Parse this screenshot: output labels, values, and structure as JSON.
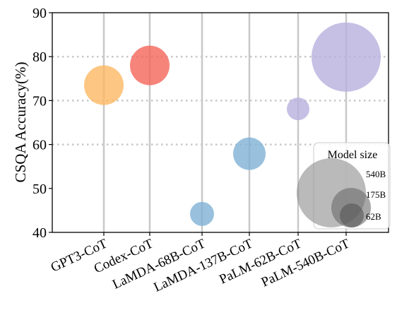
{
  "chart_data": {
    "type": "scatter",
    "ylabel": "CSQA Accuracy(%)",
    "ylim": [
      40,
      90
    ],
    "yticks": [
      40,
      50,
      60,
      70,
      80,
      90
    ],
    "y_grid": [
      60,
      70,
      80
    ],
    "categories": [
      "GPT3-CoT",
      "Codex-CoT",
      "LaMDA-68B-CoT",
      "LaMDA-137B-CoT",
      "PaLM-62B-CoT",
      "PaLM-540B-CoT"
    ],
    "points": [
      {
        "category": "GPT3-CoT",
        "y": 73.5,
        "color": "#fdb863"
      },
      {
        "category": "Codex-CoT",
        "y": 78.0,
        "color": "#f4655a"
      },
      {
        "category": "LaMDA-68B-CoT",
        "y": 44.2,
        "color": "#7fb1d6"
      },
      {
        "category": "LaMDA-137B-CoT",
        "y": 57.9,
        "color": "#7fb1d6"
      },
      {
        "category": "PaLM-62B-CoT",
        "y": 68.1,
        "color": "#b8b0de"
      },
      {
        "category": "PaLM-540B-CoT",
        "y": 79.9,
        "color": "#b8b0de"
      }
    ],
    "legend": {
      "title": "Model size",
      "placement": "bottom-right",
      "entries": [
        "540B",
        "175B",
        "62B"
      ]
    }
  }
}
